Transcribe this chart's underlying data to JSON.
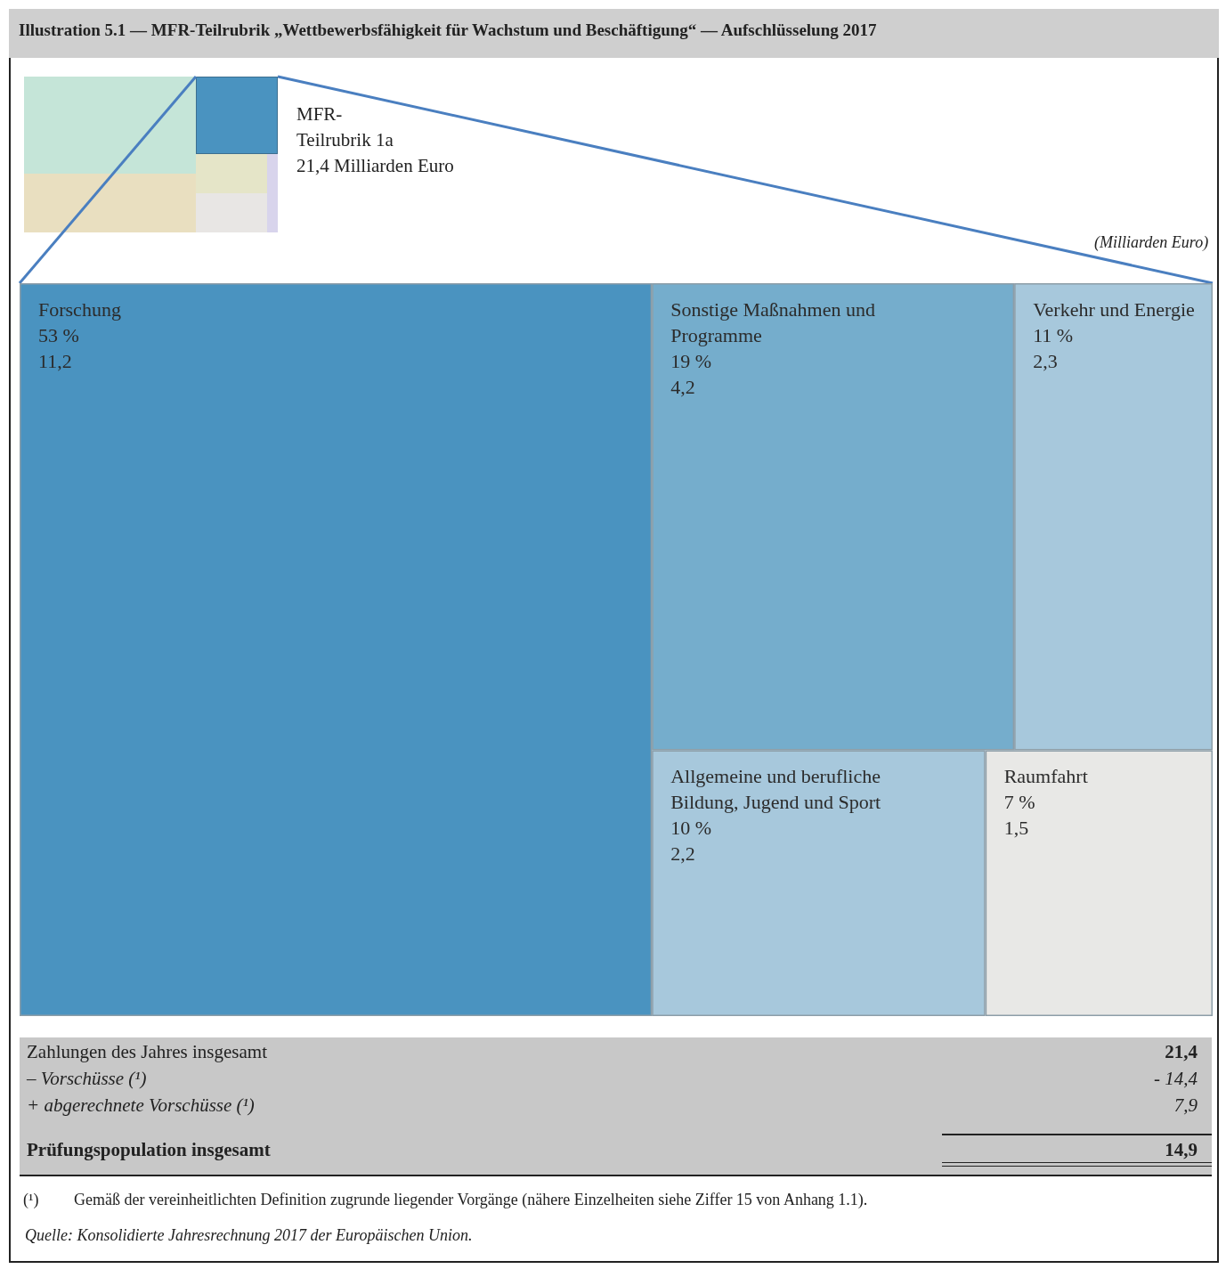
{
  "chart_data": {
    "type": "other",
    "title": "Illustration 5.1 — MFR-Teilrubrik „Wettbewerbsfähigkeit für Wachstum und Beschäftigung“ — Aufschlüsselung 2017",
    "categories": [
      "Forschung",
      "Sonstige Maßnahmen und Programme",
      "Verkehr und Energie",
      "Allgemeine und berufliche Bildung, Jugend und Sport",
      "Raumfahrt"
    ],
    "series": [
      {
        "colors": [
          "#4a93c0",
          "#75adcc",
          "#a7c8dc",
          "#a7c8dc",
          "#e8e8e6"
        ],
        "values": [
          53,
          19,
          11,
          10,
          7
        ],
        "value_labels": [
          "53 %",
          "19 %",
          "11 %",
          "10 %",
          "7 %"
        ]
      },
      {
        "values": [
          11.2,
          4.2,
          2.3,
          2.2,
          1.5
        ],
        "value_labels": [
          "11,2",
          "4,2",
          "2,3",
          "2,2",
          "1,5"
        ]
      }
    ],
    "annotations": [
      "MFR-\nTeilrubrik 1a\n21,4 Milliarden Euro",
      "(Milliarden Euro)",
      "Zahlungen des Jahres insgesamt",
      "21,4",
      "– Vorschüsse (¹)",
      "- 14,4",
      "+ abgerechnete Vorschüsse (¹)",
      "7,9",
      "Prüfungspopulation insgesamt",
      "14,9",
      "(¹)",
      "Gemäß der vereinheitlichten Definition zugrunde liegender Vorgänge (nähere Einzelheiten siehe Ziffer 15 von Anhang 1.1).",
      "Quelle: Konsolidierte Jahresrechnung 2017 der Europäischen Union."
    ]
  }
}
